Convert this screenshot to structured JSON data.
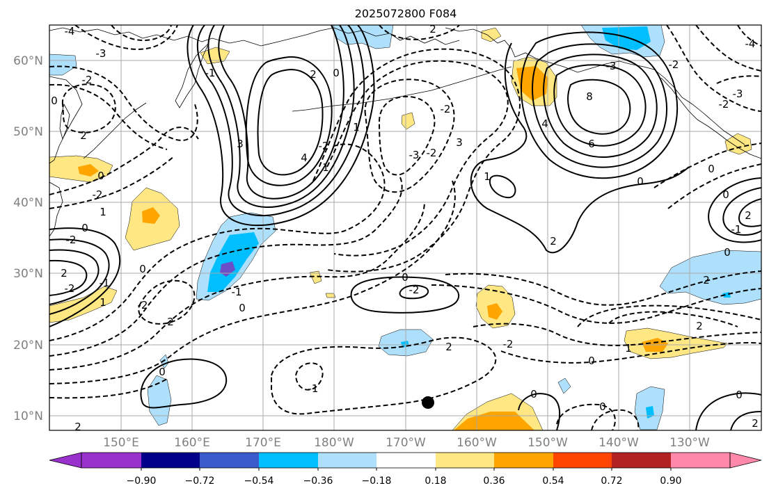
{
  "title": "2025072800 F084",
  "map": {
    "lon_range": [
      "140°E",
      "120°W"
    ],
    "lat_range": [
      "8°N",
      "65°N"
    ],
    "lat_labels": [
      "60°N",
      "50°N",
      "40°N",
      "30°N",
      "20°N",
      "10°N"
    ],
    "lon_labels": [
      "150°E",
      "160°E",
      "170°E",
      "180°W",
      "170°W",
      "160°W",
      "150°W",
      "140°W",
      "130°W"
    ],
    "gridlines": true
  },
  "colorbar": {
    "colors": [
      "#9932cc",
      "#00008b",
      "#3a5acb",
      "#00bfff",
      "#aedffb",
      "#ffffff",
      "#ffe884",
      "#ffa500",
      "#ff4500",
      "#b22222",
      "#ff88ab"
    ],
    "ticks": [
      "−0.90",
      "−0.72",
      "−0.54",
      "−0.36",
      "−0.18",
      "0.18",
      "0.36",
      "0.54",
      "0.72",
      "0.90"
    ],
    "extend": "both"
  },
  "contour_labels": [
    "0",
    "2",
    "-2",
    "-4",
    "-3",
    "4",
    "3",
    "2",
    "0",
    "-1",
    "1",
    "1",
    "-2",
    "-3",
    "-2",
    "0",
    "-2",
    "1",
    "0",
    "-2",
    "2",
    "-2",
    "-1",
    "-2",
    "0",
    "2",
    "0",
    "-1",
    "8",
    "6",
    "4",
    "-3",
    "-2",
    "0",
    "-4",
    "1",
    "2",
    "0",
    "2",
    "0",
    "-1",
    "2",
    "0",
    "2",
    "0",
    "-2",
    "-3",
    "0",
    "2",
    "-2",
    "3",
    "-2",
    "2",
    "0",
    "-1",
    "0",
    "-2",
    "0",
    "0",
    "2",
    "1",
    "2",
    "1"
  ],
  "marker": "dot"
}
